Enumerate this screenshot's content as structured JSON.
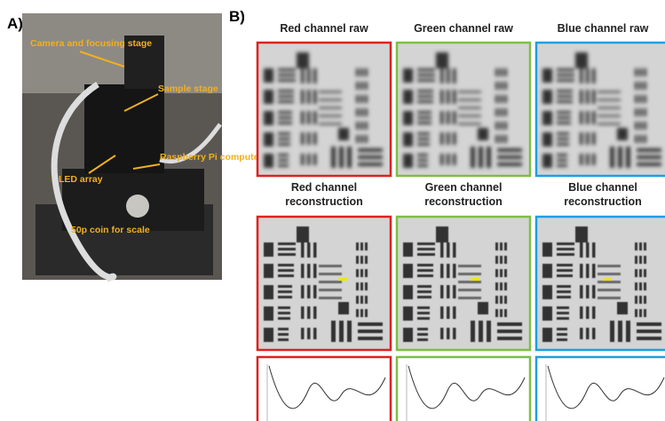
{
  "panels": {
    "a": {
      "label": "A)",
      "annotations": [
        "Camera and focusing stage",
        "Sample stage",
        "LED array",
        "Raspberry Pi computer",
        "50p coin for scale"
      ]
    },
    "b": {
      "label": "B)",
      "raw_titles": [
        "Red channel raw",
        "Green channel raw",
        "Blue channel raw"
      ],
      "reconstruction_titles": [
        "Red channel reconstruction",
        "Green channel reconstruction",
        "Blue channel reconstruction"
      ]
    }
  }
}
